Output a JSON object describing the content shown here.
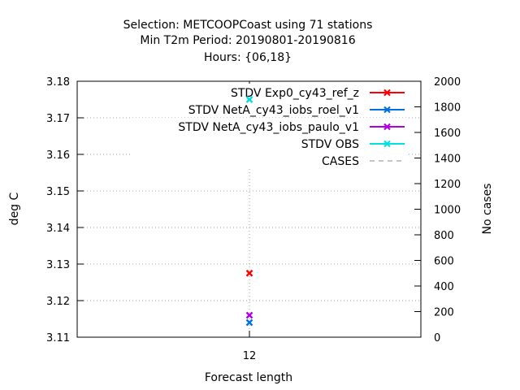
{
  "chart_data": {
    "type": "scatter",
    "title_lines": [
      "Selection: METCOOPCoast using    71 stations",
      "Min T2m   Period: 20190801-20190816",
      "Hours: {06,18}"
    ],
    "xlabel": "Forecast length",
    "ylabel": "deg C",
    "y2label": "No cases",
    "x": [
      12
    ],
    "x_tick_labels": [
      "12"
    ],
    "ylim": [
      3.11,
      3.18
    ],
    "y_ticks": [
      "3.11",
      "3.12",
      "3.13",
      "3.14",
      "3.15",
      "3.16",
      "3.17",
      "3.18"
    ],
    "y2lim": [
      0,
      2000
    ],
    "y2_ticks": [
      "0",
      "200",
      "400",
      "600",
      "800",
      "1000",
      "1200",
      "1400",
      "1600",
      "1800",
      "2000"
    ],
    "grid": true,
    "legend_position": "top-right",
    "series": [
      {
        "name": "STDV Exp0_cy43_ref_z",
        "color": "#ff0000",
        "values": [
          3.1275
        ],
        "axis": "left",
        "style": "points"
      },
      {
        "name": "STDV NetA_cy43_iobs_roel_v1",
        "color": "#0072e0",
        "values": [
          3.114
        ],
        "axis": "left",
        "style": "points"
      },
      {
        "name": "STDV NetA_cy43_iobs_paulo_v1",
        "color": "#b000e0",
        "values": [
          3.116
        ],
        "axis": "left",
        "style": "points"
      },
      {
        "name": "STDV OBS",
        "color": "#00e0e0",
        "values": [
          3.175
        ],
        "axis": "left",
        "style": "points"
      },
      {
        "name": "CASES",
        "color": "#a0a0a0",
        "values": [
          1368
        ],
        "axis": "right",
        "style": "dashed"
      }
    ]
  }
}
